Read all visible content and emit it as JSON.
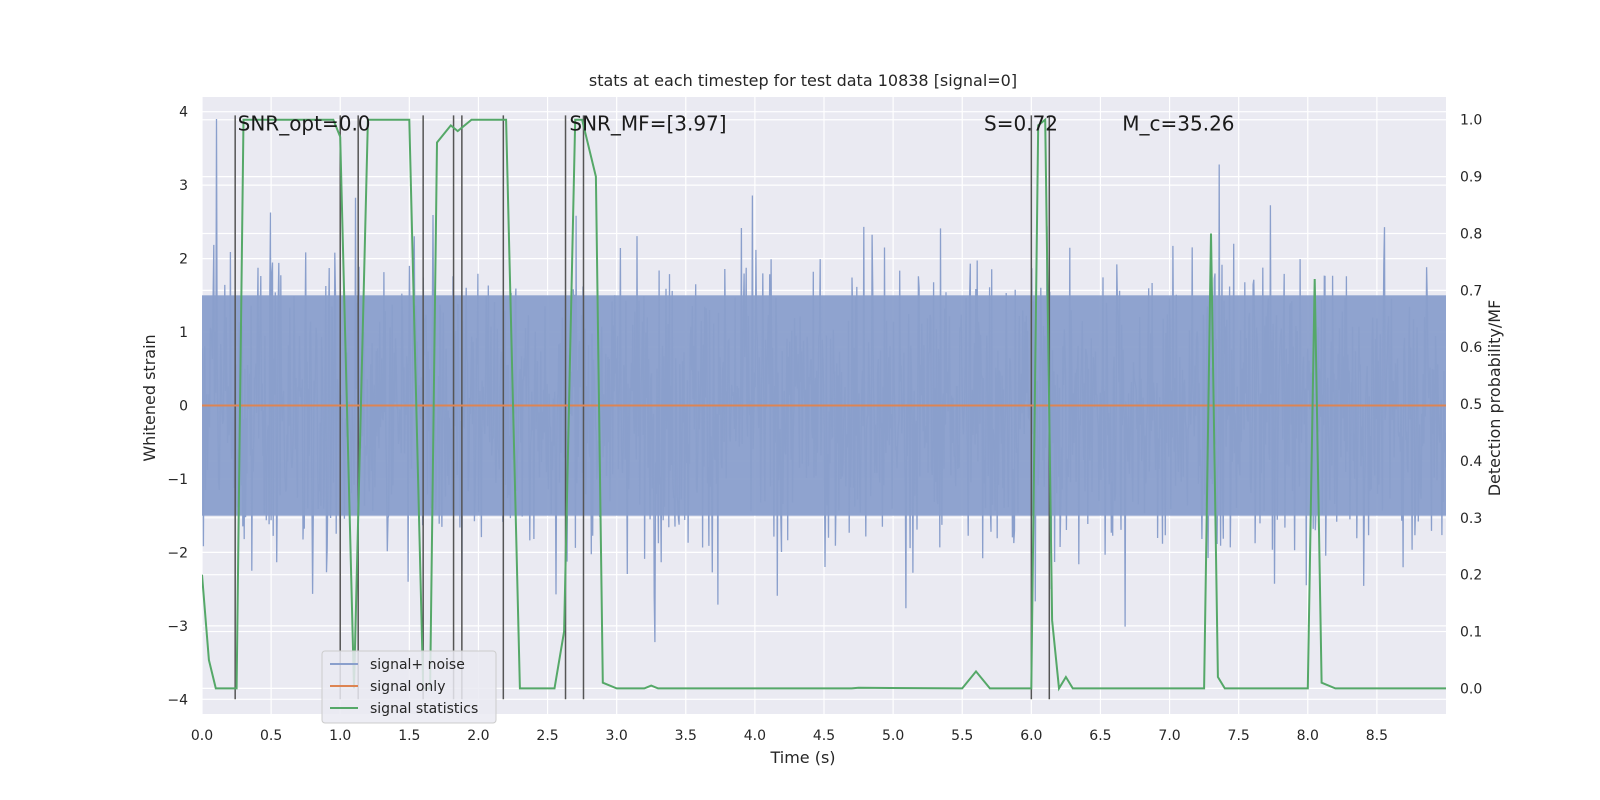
{
  "chart_data": {
    "type": "line",
    "title": "stats at each timestep for test data 10838 [signal=0]",
    "xlabel": "Time (s)",
    "ylabel_left": "Whitened strain",
    "ylabel_right": "Detection probability/MF",
    "xlim": [
      0.0,
      9.0
    ],
    "ylim_left": [
      -4.2,
      4.2
    ],
    "ylim_right": [
      -0.045,
      1.04
    ],
    "x_ticks": [
      0.0,
      0.5,
      1.0,
      1.5,
      2.0,
      2.5,
      3.0,
      3.5,
      4.0,
      4.5,
      5.0,
      5.5,
      6.0,
      6.5,
      7.0,
      7.5,
      8.0,
      8.5
    ],
    "x_tick_labels": [
      "0.0",
      "0.5",
      "1.0",
      "1.5",
      "2.0",
      "2.5",
      "3.0",
      "3.5",
      "4.0",
      "4.5",
      "5.0",
      "5.5",
      "6.0",
      "6.5",
      "7.0",
      "7.5",
      "8.0",
      "8.5"
    ],
    "y_left_ticks": [
      -4,
      -3,
      -2,
      -1,
      0,
      1,
      2,
      3,
      4
    ],
    "y_left_tick_labels": [
      "−4",
      "−3",
      "−2",
      "−1",
      "0",
      "1",
      "2",
      "3",
      "4"
    ],
    "y_right_ticks": [
      0.0,
      0.1,
      0.2,
      0.3,
      0.4,
      0.5,
      0.6,
      0.7,
      0.8,
      0.9,
      1.0
    ],
    "y_right_tick_labels": [
      "0.0",
      "0.1",
      "0.2",
      "0.3",
      "0.4",
      "0.5",
      "0.6",
      "0.7",
      "0.8",
      "0.9",
      "1.0"
    ],
    "grid": true,
    "legend_position": "lower-left",
    "annotations": [
      {
        "text": "SNR_opt=0.0",
        "x": 0.2,
        "y": 3.85
      },
      {
        "text": "SNR_MF=[3.97]",
        "x": 2.6,
        "y": 3.85
      },
      {
        "text": "S=0.72",
        "x": 5.6,
        "y": 3.85
      },
      {
        "text": "M_c=35.26",
        "x": 6.6,
        "y": 3.85
      }
    ],
    "series": [
      {
        "name": "signal+ noise",
        "axis": "left",
        "color": "#8a9fcc",
        "description": "whitened noise, roughly within [-2.5, 2.5] with spikes near ±3.8"
      },
      {
        "name": "signal only",
        "axis": "left",
        "color": "#dd8452",
        "values_constant": 0.0
      },
      {
        "name": "signal statistics",
        "axis": "right",
        "color": "#55a868",
        "x": [
          0.0,
          0.05,
          0.1,
          0.25,
          0.3,
          0.95,
          1.0,
          1.1,
          1.2,
          1.5,
          1.6,
          1.65,
          1.7,
          1.8,
          1.85,
          1.95,
          2.2,
          2.3,
          2.55,
          2.62,
          2.7,
          2.75,
          2.85,
          2.9,
          3.0,
          3.2,
          3.25,
          3.3,
          4.7,
          4.75,
          5.5,
          5.6,
          5.7,
          6.0,
          6.05,
          6.1,
          6.15,
          6.2,
          6.25,
          6.3,
          6.4,
          7.25,
          7.3,
          7.35,
          7.4,
          8.0,
          8.05,
          8.1,
          8.2,
          9.0
        ],
        "values": [
          0.2,
          0.05,
          0.0,
          0.0,
          1.0,
          1.0,
          0.97,
          0.0,
          1.0,
          1.0,
          0.0,
          0.0,
          0.96,
          0.99,
          0.98,
          1.0,
          1.0,
          0.0,
          0.0,
          0.1,
          1.0,
          1.0,
          0.9,
          0.01,
          0.0,
          0.0,
          0.005,
          0.0,
          0.0,
          0.001,
          0.0,
          0.03,
          0.0,
          0.0,
          0.99,
          1.0,
          0.12,
          0.0,
          0.02,
          0.0,
          0.0,
          0.0,
          0.8,
          0.02,
          0.0,
          0.0,
          0.72,
          0.01,
          0.0,
          0.0
        ]
      },
      {
        "name": "vertical markers",
        "axis": "left",
        "color": "#555555",
        "x": [
          0.24,
          1.0,
          1.13,
          1.6,
          1.82,
          1.88,
          2.18,
          2.63,
          2.76,
          6.0,
          6.13
        ]
      }
    ],
    "legend": [
      {
        "label": "signal+ noise",
        "color": "#8a9fcc"
      },
      {
        "label": "signal only",
        "color": "#dd8452"
      },
      {
        "label": "signal statistics",
        "color": "#55a868"
      }
    ]
  }
}
